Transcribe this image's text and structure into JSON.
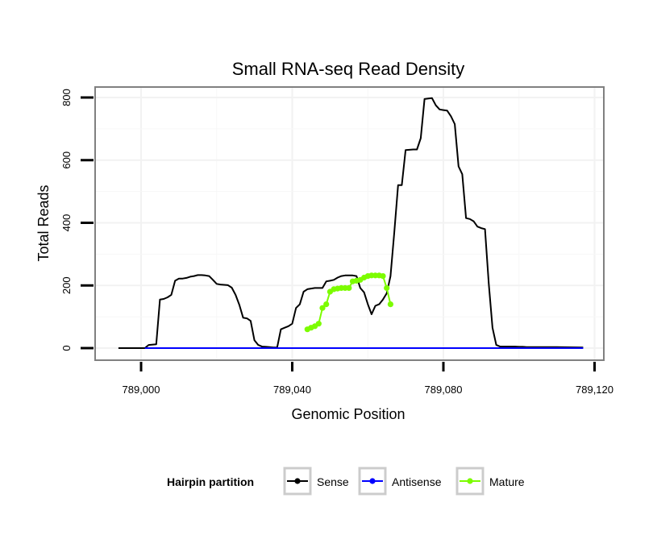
{
  "chart_data": {
    "type": "line",
    "title": "Small RNA-seq Read Density",
    "xlabel": "Genomic Position",
    "ylabel": "Total Reads",
    "xlim": [
      788988,
      789122
    ],
    "ylim": [
      -35,
      840
    ],
    "x_ticks": [
      789000,
      789040,
      789080,
      789120
    ],
    "x_tick_labels": [
      "789,000",
      "789,040",
      "789,080",
      "789,120"
    ],
    "y_ticks": [
      0,
      200,
      400,
      600,
      800
    ],
    "y_tick_labels": [
      "0",
      "200",
      "400",
      "600",
      "800"
    ],
    "grid": true,
    "legend": {
      "title": "Hairpin partition",
      "position": "bottom"
    },
    "series": [
      {
        "name": "Sense",
        "color": "#000000",
        "x": [
          788994,
          789001,
          789002,
          789004,
          789005,
          789006,
          789007,
          789008,
          789009,
          789010,
          789011,
          789012,
          789013,
          789014,
          789015,
          789016,
          789017,
          789018,
          789019,
          789020,
          789021,
          789022,
          789023,
          789024,
          789025,
          789026,
          789027,
          789028,
          789029,
          789030,
          789031,
          789032,
          789033,
          789034,
          789035,
          789036,
          789037,
          789038,
          789039,
          789040,
          789041,
          789042,
          789043,
          789044,
          789045,
          789046,
          789047,
          789048,
          789049,
          789050,
          789051,
          789052,
          789053,
          789054,
          789055,
          789056,
          789057,
          789058,
          789059,
          789060,
          789061,
          789062,
          789063,
          789064,
          789065,
          789066,
          789067,
          789068,
          789069,
          789070,
          789071,
          789072,
          789073,
          789074,
          789075,
          789076,
          789077,
          789078,
          789079,
          789080,
          789081,
          789082,
          789083,
          789084,
          789085,
          789086,
          789087,
          789088,
          789089,
          789090,
          789091,
          789092,
          789093,
          789094,
          789095,
          789096,
          789097,
          789098,
          789099,
          789100,
          789101,
          789102,
          789103,
          789104,
          789105,
          789110,
          789117
        ],
        "y": [
          0,
          0,
          10,
          12,
          155,
          157,
          162,
          170,
          215,
          222,
          222,
          224,
          228,
          230,
          233,
          233,
          232,
          230,
          218,
          205,
          203,
          202,
          201,
          193,
          170,
          138,
          97,
          95,
          87,
          25,
          10,
          5,
          4,
          3,
          2,
          2,
          60,
          65,
          70,
          78,
          128,
          140,
          180,
          188,
          190,
          192,
          192,
          192,
          213,
          215,
          218,
          225,
          230,
          232,
          232,
          232,
          230,
          192,
          178,
          140,
          108,
          135,
          140,
          155,
          175,
          230,
          370,
          520,
          520,
          632,
          633,
          634,
          634,
          670,
          795,
          797,
          798,
          775,
          762,
          760,
          758,
          740,
          715,
          580,
          555,
          415,
          412,
          405,
          388,
          383,
          380,
          205,
          65,
          10,
          5,
          5,
          5,
          5,
          5,
          4,
          4,
          3,
          3,
          3,
          3,
          3,
          2
        ]
      },
      {
        "name": "Antisense",
        "color": "#0000ff",
        "x": [
          789001,
          789117
        ],
        "y": [
          0,
          0
        ]
      },
      {
        "name": "Mature",
        "color": "#7cfc00",
        "x": [
          789044,
          789045,
          789046,
          789047,
          789048,
          789049,
          789050,
          789051,
          789052,
          789053,
          789054,
          789055,
          789056,
          789057,
          789058,
          789059,
          789060,
          789061,
          789062,
          789063,
          789064,
          789065,
          789066
        ],
        "y": [
          60,
          65,
          70,
          78,
          128,
          140,
          180,
          188,
          190,
          192,
          192,
          192,
          213,
          215,
          218,
          225,
          230,
          232,
          232,
          232,
          230,
          192,
          140
        ]
      }
    ]
  }
}
